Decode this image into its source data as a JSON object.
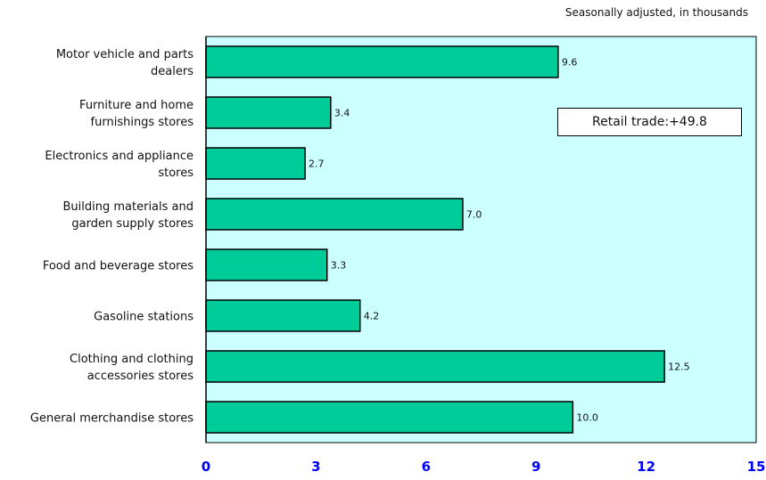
{
  "chart_data": {
    "type": "bar",
    "orientation": "horizontal",
    "subtitle": "Seasonally adjusted, in thousands",
    "annotation": "Retail trade:+49.8",
    "categories": [
      "Motor vehicle and parts dealers",
      "Furniture and home furnishings stores",
      "Electronics and appliance stores",
      "Building materials and garden supply stores",
      "Food and beverage stores",
      "Gasoline stations",
      "Clothing and clothing accessories stores",
      "General merchandise stores"
    ],
    "category_label_lines": [
      [
        "Motor vehicle and parts",
        "dealers"
      ],
      [
        "Furniture and home",
        "furnishings stores"
      ],
      [
        "Electronics and appliance",
        "stores"
      ],
      [
        "Building materials and",
        "garden supply stores"
      ],
      [
        "Food and beverage stores"
      ],
      [
        "Gasoline stations"
      ],
      [
        "Clothing and clothing",
        "accessories stores"
      ],
      [
        "General merchandise stores"
      ]
    ],
    "values": [
      9.6,
      3.4,
      2.7,
      7.0,
      3.3,
      4.2,
      12.5,
      10.0
    ],
    "value_labels": [
      "9.6",
      "3.4",
      "2.7",
      "7.0",
      "3.3",
      "4.2",
      "12.5",
      "10.0"
    ],
    "xlim": [
      0,
      15
    ],
    "xticks": [
      0,
      3,
      6,
      9,
      12,
      15
    ],
    "grid": false,
    "colors": {
      "bar_fill": "#00cc99",
      "bar_stroke": "#000000",
      "plot_background": "#ccffff",
      "tick_label": "#0000ff"
    }
  }
}
